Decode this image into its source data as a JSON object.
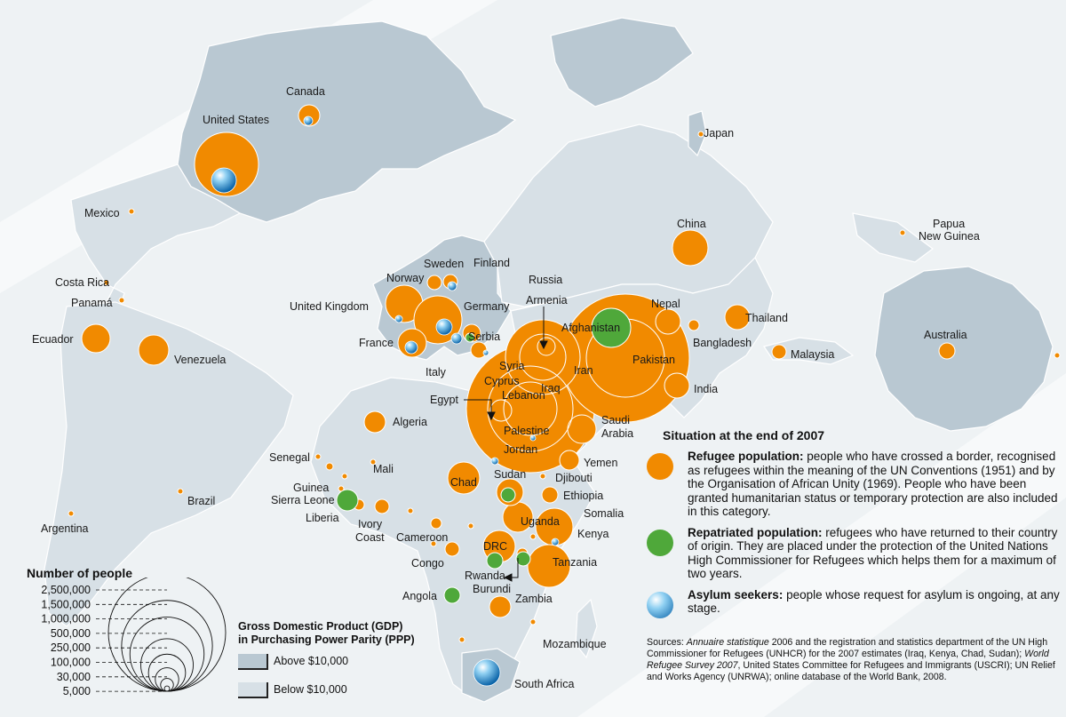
{
  "colors": {
    "refugee": "#f18a00",
    "repatriated": "#4fa83a",
    "asylum": "#1f8fd2",
    "land_rich": "#b9c8d2",
    "land_poor": "#d7e0e6",
    "sea": "#eef2f4",
    "border": "#ffffff"
  },
  "legend": {
    "title": "Situation at the end of 2007",
    "refugee": {
      "term": "Refugee population:",
      "desc": "people who have crossed a border, recognised as refugees within the meaning of the UN Conventions (1951) and by the Organisation of African Unity (1969). People who have been granted humanitarian status or temporary protection are also included in this category."
    },
    "repatriated": {
      "term": "Repatriated population:",
      "desc": "refugees who have returned to their country of origin. They are placed under the protection of the United Nations High Commissioner for Refugees which helps them for a maximum of two years."
    },
    "asylum": {
      "term": "Asylum seekers:",
      "desc": "people whose request for asylum is ongoing, at any stage."
    }
  },
  "sources": {
    "prefix": "Sources: ",
    "title1": "Annuaire statistique",
    "part1": " 2006 and the registration and statistics department of the UN High Commissioner for Refugees (UNHCR) for the 2007 estimates (Iraq, Kenya, Chad, Sudan); ",
    "title2": "World Refugee Survey 2007",
    "part2": ", United States Committee for Refugees and Immigrants (USCRI); UN Relief and Works Agency (UNRWA); online database of the World Bank, 2008."
  },
  "size_legend": {
    "title": "Number of people",
    "values": [
      "2,500,000",
      "1,500,000",
      "1,000,000",
      "500,000",
      "250,000",
      "100,000",
      "30,000",
      "5,000"
    ],
    "numbers": [
      2500000,
      1500000,
      1000000,
      500000,
      250000,
      100000,
      30000,
      5000
    ]
  },
  "gdp_legend": {
    "title_line1": "Gross Domestic Product (GDP)",
    "title_line2": "in Purchasing Power Parity (PPP)",
    "above": "Above $10,000",
    "below": "Below $10,000"
  },
  "labels": {
    "canada": "Canada",
    "united_states": "United States",
    "mexico": "Mexico",
    "costa_rica": "Costa Rica",
    "panama": "Panamá",
    "ecuador": "Ecuador",
    "venezuela": "Venezuela",
    "brazil": "Brazil",
    "argentina": "Argentina",
    "japan": "Japan",
    "china": "China",
    "papua_line1": "Papua",
    "papua_line2": "New Guinea",
    "russia": "Russia",
    "finland": "Finland",
    "sweden": "Sweden",
    "norway": "Norway",
    "united_kingdom": "United Kingdom",
    "germany": "Germany",
    "france": "France",
    "serbia": "Serbia",
    "italy": "Italy",
    "armenia": "Armenia",
    "afghanistan": "Afghanistan",
    "nepal": "Nepal",
    "thailand": "Thailand",
    "bangladesh": "Bangladesh",
    "malaysia": "Malaysia",
    "australia": "Australia",
    "syria": "Syria",
    "cyprus": "Cyprus",
    "lebanon": "Lebanon",
    "iraq": "Iraq",
    "iran": "Iran",
    "pakistan": "Pakistan",
    "india": "India",
    "egypt": "Egypt",
    "palestine": "Palestine",
    "jordan": "Jordan",
    "saudi_line1": "Saudi",
    "saudi_line2": "Arabia",
    "algeria": "Algeria",
    "senegal": "Senegal",
    "mali": "Mali",
    "guinea": "Guinea",
    "sierra_leone": "Sierra Leone",
    "liberia": "Liberia",
    "ivory_line1": "Ivory",
    "ivory_line2": "Coast",
    "chad": "Chad",
    "sudan": "Sudan",
    "yemen": "Yemen",
    "djibouti": "Djibouti",
    "ethiopia": "Ethiopia",
    "somalia": "Somalia",
    "uganda": "Uganda",
    "kenya": "Kenya",
    "cameroon": "Cameroon",
    "congo": "Congo",
    "drc": "DRC",
    "tanzania": "Tanzania",
    "rwanda": "Rwanda",
    "burundi": "Burundi",
    "angola": "Angola",
    "zambia": "Zambia",
    "mozambique": "Mozambique",
    "south_africa": "South Africa"
  }
}
